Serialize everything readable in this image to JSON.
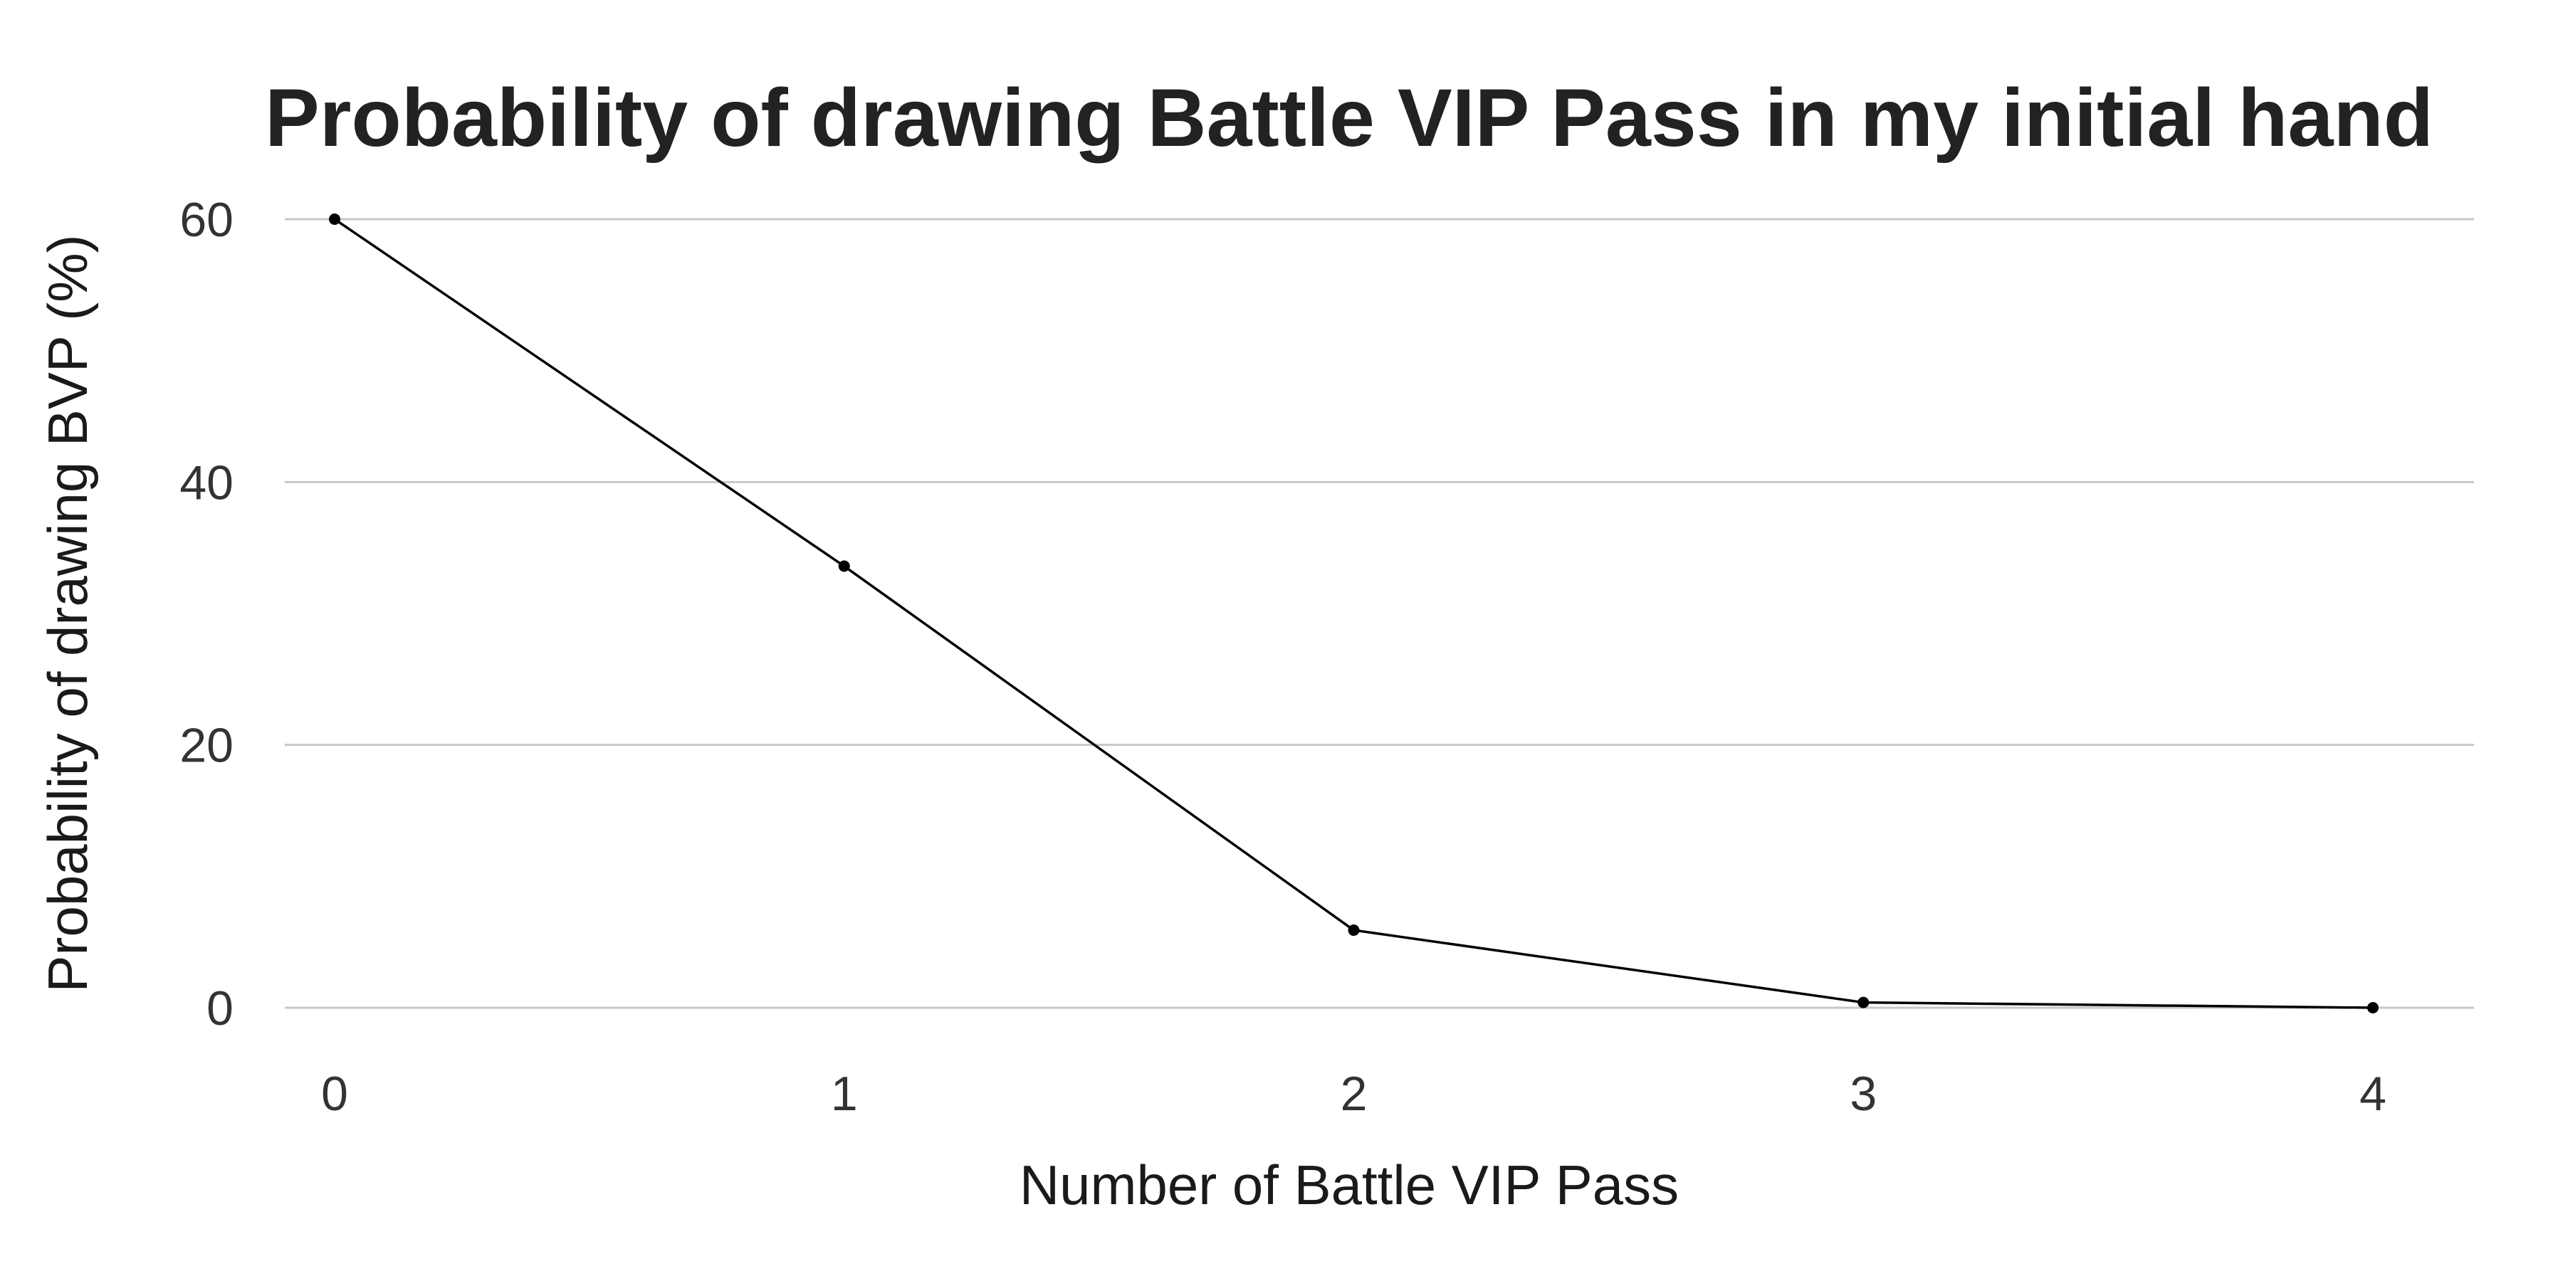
{
  "chart_data": {
    "type": "line",
    "title": "Probability of drawing Battle VIP Pass in my initial hand",
    "xlabel": "Number of Battle VIP Pass",
    "ylabel": "Probability of drawing BVP (%)",
    "x": [
      0,
      1,
      2,
      3,
      4
    ],
    "xticks": [
      "0",
      "1",
      "2",
      "3",
      "4"
    ],
    "yticks": [
      "0",
      "20",
      "40",
      "60"
    ],
    "ytick_values": [
      0,
      20,
      40,
      60
    ],
    "xlim": [
      0,
      4
    ],
    "ylim": [
      0,
      60
    ],
    "grid": "horizontal",
    "series": [
      {
        "values": [
          60.0,
          33.6,
          5.9,
          0.4,
          0.0
        ],
        "color": "#000000"
      }
    ]
  }
}
